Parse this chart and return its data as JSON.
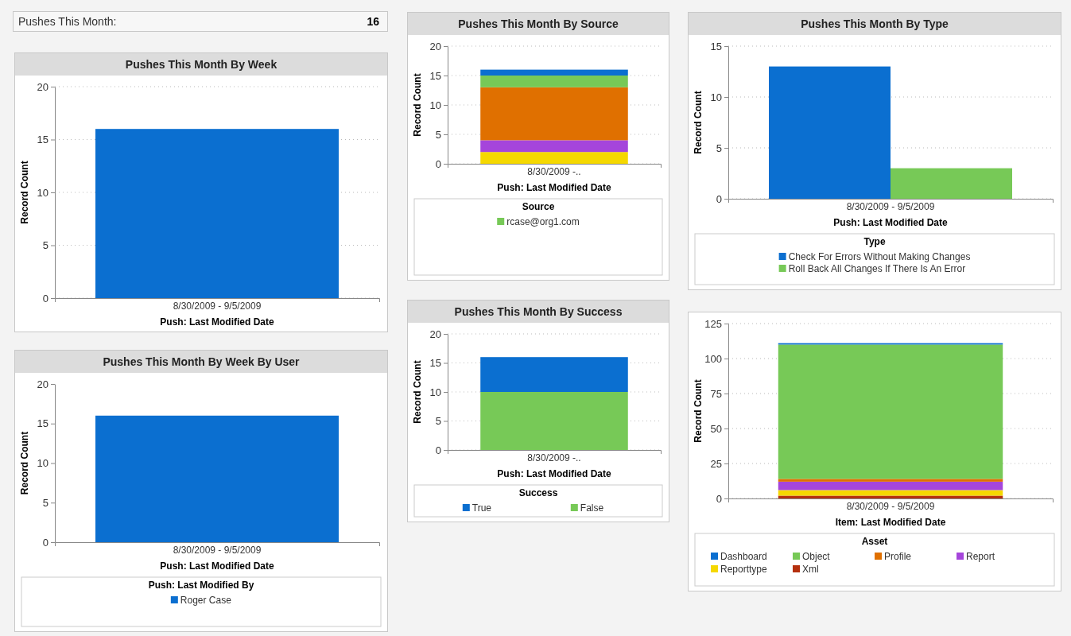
{
  "chart_data": [
    {
      "type": "other",
      "title": "Pushes This Month:",
      "annotations": [
        "16"
      ]
    },
    {
      "type": "bar",
      "title": "Pushes This Month By Week",
      "xlabel": "Push: Last Modified Date",
      "ylabel": "Record Count",
      "categories": [
        "8/30/2009 - 9/5/2009"
      ],
      "series": [
        {
          "color": "#0b6fd0",
          "values": [
            16
          ]
        }
      ],
      "ylim": [
        0,
        20
      ],
      "yticks": [
        0,
        5,
        10,
        15,
        20
      ],
      "grid": "y"
    },
    {
      "type": "bar",
      "title": "Pushes This Month By Week By User",
      "xlabel": "Push: Last Modified Date",
      "ylabel": "Record Count",
      "legend_title": "Push: Last Modified By",
      "categories": [
        "8/30/2009 - 9/5/2009"
      ],
      "series": [
        {
          "name": "Roger Case",
          "color": "#0b6fd0",
          "values": [
            16
          ]
        }
      ],
      "ylim": [
        0,
        20
      ],
      "yticks": [
        0,
        5,
        10,
        15,
        20
      ],
      "legend": "bottom"
    },
    {
      "type": "bar",
      "stacked": true,
      "title": "Pushes This Month By Source",
      "xlabel": "Push: Last Modified Date",
      "ylabel": "Record Count",
      "legend_title": "Source",
      "categories": [
        "8/30/2009 -.."
      ],
      "series": [
        {
          "color": "#f5d800",
          "values": [
            2
          ]
        },
        {
          "color": "#a545db",
          "values": [
            2
          ]
        },
        {
          "color": "#e07000",
          "values": [
            9
          ]
        },
        {
          "name": "rcase@org1.com",
          "color": "#77c957",
          "values": [
            2
          ]
        },
        {
          "color": "#0b6fd0",
          "values": [
            1
          ]
        }
      ],
      "ylim": [
        0,
        20
      ],
      "yticks": [
        0,
        5,
        10,
        15,
        20
      ],
      "grid": "y",
      "legend": "bottom"
    },
    {
      "type": "bar",
      "title": "Pushes This Month By Type",
      "xlabel": "Push: Last Modified Date",
      "ylabel": "Record Count",
      "legend_title": "Type",
      "categories": [
        "8/30/2009 - 9/5/2009"
      ],
      "series": [
        {
          "name": "Check For Errors Without Making Changes",
          "color": "#0b6fd0",
          "values": [
            13
          ]
        },
        {
          "name": "Roll Back All Changes If There Is An Error",
          "color": "#77c957",
          "values": [
            3
          ]
        }
      ],
      "ylim": [
        0,
        15
      ],
      "yticks": [
        0,
        5,
        10,
        15
      ],
      "grid": "y",
      "legend": "bottom"
    },
    {
      "type": "bar",
      "stacked": true,
      "title": "Pushes This Month By Success",
      "xlabel": "Push: Last Modified Date",
      "ylabel": "Record Count",
      "legend_title": "Success",
      "categories": [
        "8/30/2009 -.."
      ],
      "series": [
        {
          "name": "False",
          "color": "#77c957",
          "values": [
            10
          ]
        },
        {
          "name": "True",
          "color": "#0b6fd0",
          "values": [
            6
          ]
        }
      ],
      "ylim": [
        0,
        20
      ],
      "yticks": [
        0,
        5,
        10,
        15,
        20
      ],
      "grid": "y",
      "legend": "bottom"
    },
    {
      "type": "bar",
      "stacked": true,
      "xlabel": "Item: Last Modified Date",
      "ylabel": "Record Count",
      "legend_title": "Asset",
      "categories": [
        "8/30/2009 - 9/5/2009"
      ],
      "series": [
        {
          "name": "Xml",
          "color": "#b5300e",
          "values": [
            2
          ]
        },
        {
          "name": "Reporttype",
          "color": "#f5d800",
          "values": [
            4
          ]
        },
        {
          "name": "Report",
          "color": "#a545db",
          "values": [
            6
          ]
        },
        {
          "name": "Profile",
          "color": "#e07000",
          "values": [
            2
          ]
        },
        {
          "name": "Object",
          "color": "#77c957",
          "values": [
            96
          ]
        },
        {
          "name": "Dashboard",
          "color": "#0b6fd0",
          "values": [
            1
          ]
        }
      ],
      "ylim": [
        0,
        125
      ],
      "yticks": [
        0,
        25,
        50,
        75,
        100,
        125
      ],
      "grid": "y",
      "legend": "bottom"
    }
  ]
}
